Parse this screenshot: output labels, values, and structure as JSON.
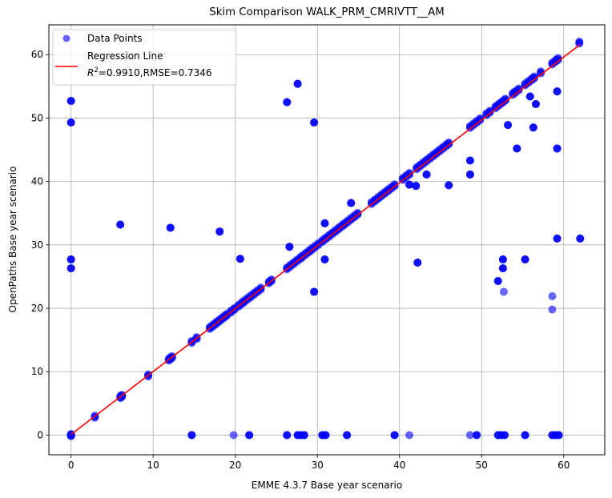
{
  "chart_data": {
    "type": "scatter",
    "title": "Skim Comparison WALK_PRM_CMRIVTT__AM",
    "xlabel": "EMME 4.3.7 Base year scenario",
    "ylabel": "OpenPaths Base year scenario",
    "xlim": [
      -2.7,
      65
    ],
    "ylim": [
      -3.1,
      64.7
    ],
    "xticks": [
      0,
      10,
      20,
      30,
      40,
      50,
      60
    ],
    "yticks": [
      0,
      10,
      20,
      30,
      40,
      50,
      60
    ],
    "xtick_labels": [
      "0",
      "10",
      "20",
      "30",
      "40",
      "50",
      "60"
    ],
    "ytick_labels": [
      "0",
      "10",
      "20",
      "30",
      "40",
      "50",
      "60"
    ],
    "grid": true,
    "legend_position": "top-left",
    "legend": {
      "points_label": "Data Points",
      "line_label_1": "Regression Line",
      "line_label_r2": "R",
      "line_label_r2_sup": "2",
      "line_label_2": "=0.9910,RMSE=0.7346"
    },
    "series": [
      {
        "name": "Data Points",
        "color": "#0000ff",
        "alpha": 0.6,
        "diagonal_x": [
          0,
          0,
          2.9,
          6,
          6.1,
          6.2,
          9.4,
          11.9,
          12.1,
          12.3,
          14.7,
          15.3,
          16.9,
          17.2,
          17.5,
          17.8,
          18.1,
          18.4,
          18.7,
          19.0,
          19.5,
          19.9,
          20.4,
          20.8,
          21.1,
          21.5,
          21.9,
          22.3,
          22.7,
          23.1,
          24.1,
          24.4,
          26.3,
          26.7,
          27.1,
          27.5,
          27.9,
          28.2,
          28.6,
          29.0,
          29.3,
          29.7,
          30.1,
          30.6,
          31.0,
          31.4,
          31.8,
          32.2,
          32.6,
          33.0,
          33.3,
          33.7,
          34.1,
          34.5,
          34.9,
          36.6,
          37.0,
          37.4,
          37.8,
          38.2,
          38.6,
          39.0,
          39.4,
          40.4,
          40.8,
          41.2,
          42.1,
          42.5,
          42.9,
          43.3,
          43.7,
          44.1,
          44.5,
          44.9,
          45.3,
          45.7,
          46.0,
          48.6,
          49.0,
          49.4,
          49.8,
          50.6,
          51.0,
          51.7,
          52.0,
          52.3,
          52.6,
          52.9,
          53.8,
          54.1,
          54.5,
          55.3,
          55.7,
          56.1,
          56.4,
          57.2,
          58.6,
          59.0,
          59.3,
          61.9
        ],
        "outliers": [
          {
            "x": 0,
            "y": 52.7
          },
          {
            "x": 0,
            "y": 49.3
          },
          {
            "x": 0,
            "y": 27.7
          },
          {
            "x": 0,
            "y": 26.3
          },
          {
            "x": 6,
            "y": 33.2
          },
          {
            "x": 12.1,
            "y": 32.7
          },
          {
            "x": 18.1,
            "y": 32.1
          },
          {
            "x": 20.6,
            "y": 27.8
          },
          {
            "x": 26.3,
            "y": 52.5
          },
          {
            "x": 27.6,
            "y": 55.4
          },
          {
            "x": 29.6,
            "y": 49.3
          },
          {
            "x": 26.6,
            "y": 29.7
          },
          {
            "x": 29.6,
            "y": 22.6
          },
          {
            "x": 30.9,
            "y": 33.4
          },
          {
            "x": 30.9,
            "y": 27.7
          },
          {
            "x": 34.1,
            "y": 36.6
          },
          {
            "x": 41.2,
            "y": 39.5
          },
          {
            "x": 42.0,
            "y": 39.3
          },
          {
            "x": 43.3,
            "y": 41.1
          },
          {
            "x": 46.0,
            "y": 39.4
          },
          {
            "x": 42.2,
            "y": 27.2
          },
          {
            "x": 48.6,
            "y": 43.3
          },
          {
            "x": 48.6,
            "y": 41.1
          },
          {
            "x": 53.2,
            "y": 48.9
          },
          {
            "x": 54.3,
            "y": 45.2
          },
          {
            "x": 55.9,
            "y": 53.4
          },
          {
            "x": 56.3,
            "y": 48.5
          },
          {
            "x": 56.6,
            "y": 52.2
          },
          {
            "x": 59.2,
            "y": 54.2
          },
          {
            "x": 59.2,
            "y": 45.2
          },
          {
            "x": 59.2,
            "y": 31.0
          },
          {
            "x": 62.0,
            "y": 31.0
          },
          {
            "x": 52.0,
            "y": 24.3
          },
          {
            "x": 52.6,
            "y": 27.7
          },
          {
            "x": 52.6,
            "y": 26.3
          },
          {
            "x": 55.3,
            "y": 27.7
          },
          {
            "x": 52.7,
            "y": 22.6,
            "faint": true
          },
          {
            "x": 58.6,
            "y": 21.9,
            "faint": true
          },
          {
            "x": 58.6,
            "y": 19.8,
            "faint": true
          }
        ],
        "zero_row_x": [
          0,
          14.7,
          19.8,
          21.7,
          26.3,
          27.6,
          28.0,
          28.4,
          30.6,
          31.0,
          33.6,
          39.4,
          41.2,
          48.6,
          49.4,
          52.0,
          52.4,
          52.8,
          55.3,
          58.6,
          59.0,
          59.4
        ],
        "zero_row_faint_x": [
          19.8,
          41.2,
          48.6
        ]
      },
      {
        "name": "Regression Line",
        "type": "line",
        "color": "#ff0000",
        "x": [
          0,
          62
        ],
        "y": [
          0.1,
          61.6
        ]
      }
    ]
  }
}
